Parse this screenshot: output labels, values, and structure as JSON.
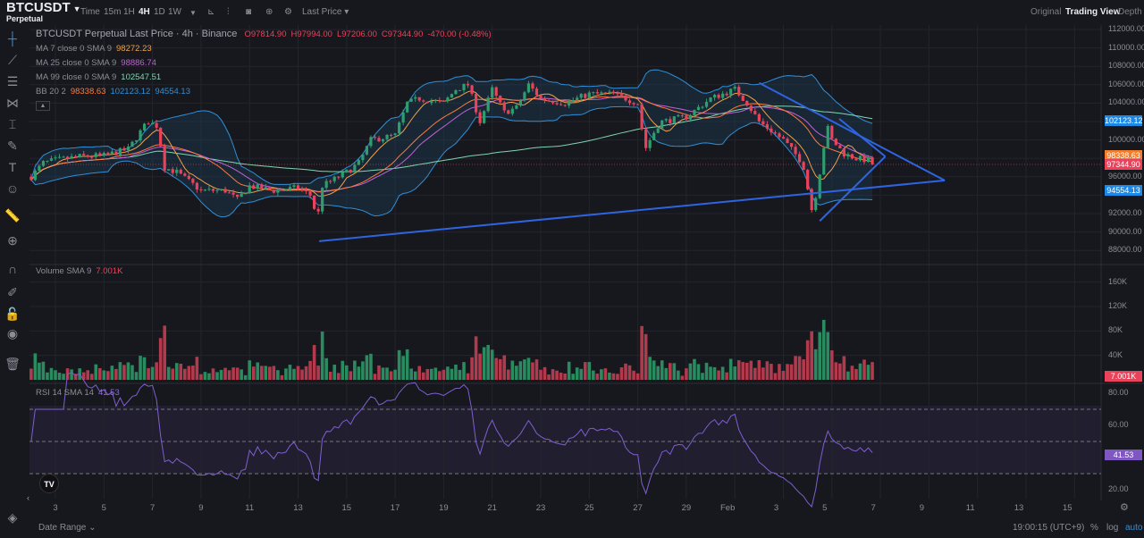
{
  "header": {
    "symbol": "BTCUSDT",
    "symbol_sub": "Perpetual",
    "intervals": [
      "Time",
      "15m",
      "1H",
      "4H",
      "1D",
      "1W"
    ],
    "active_interval": "4H",
    "price_source": "Last Price",
    "views": [
      "Original",
      "Trading View",
      "Depth"
    ],
    "active_view": "Trading View"
  },
  "legend": {
    "title": "BTCUSDT Perpetual Last Price · 4h · Binance",
    "ohlc": {
      "o": "O97814.90",
      "h": "H97994.00",
      "l": "L97206.00",
      "c": "C97344.90",
      "chg": "-470.00 (-0.48%)"
    },
    "ma7": {
      "label": "MA 7 close 0 SMA 9",
      "value": "98272.23",
      "color": "#f0a04b"
    },
    "ma25": {
      "label": "MA 25 close 0 SMA 9",
      "value": "98886.74",
      "color": "#c061d6"
    },
    "ma99": {
      "label": "MA 99 close 0 SMA 9",
      "value": "102547.51",
      "color": "#7fd6b0"
    },
    "bb": {
      "label": "BB 20 2",
      "basis": "98338.63",
      "upper": "102123.12",
      "lower": "94554.13",
      "basis_color": "#ff7a3d",
      "band_color": "#2f8fd8"
    },
    "volume": {
      "label": "Volume SMA 9",
      "value": "7.001K"
    },
    "rsi": {
      "label": "RSI 14 SMA 14",
      "value": "41.53"
    }
  },
  "price_axis": {
    "ticks": [
      "112000.00",
      "110000.00",
      "108000.00",
      "106000.00",
      "104000.00",
      "100000.00",
      "96000.00",
      "92000.00",
      "90000.00",
      "88000.00"
    ],
    "tags": [
      {
        "text": "102123.12",
        "price": 102123.12,
        "color": "#1e88e5"
      },
      {
        "text": "98338.63",
        "price": 98338.63,
        "color": "#f57c2a"
      },
      {
        "text": "97344.90",
        "price": 97344.9,
        "color": "#e8435a"
      },
      {
        "text": "94554.13",
        "price": 94554.13,
        "color": "#1e88e5"
      }
    ]
  },
  "volume_axis": {
    "ticks": [
      "160K",
      "120K",
      "80K",
      "40K"
    ],
    "tag": "7.001K"
  },
  "rsi_axis": {
    "ticks": [
      "80.00",
      "60.00",
      "20.00"
    ],
    "tag": "41.53"
  },
  "date_axis": {
    "labels": [
      "3",
      "5",
      "7",
      "9",
      "11",
      "13",
      "15",
      "17",
      "19",
      "21",
      "23",
      "25",
      "27",
      "29",
      "Feb",
      "3",
      "5",
      "7",
      "9",
      "11",
      "13",
      "15"
    ]
  },
  "bottom": {
    "date_range": "Date Range",
    "time": "19:00:15 (UTC+9)",
    "percent": "%",
    "log": "log",
    "auto": "auto"
  },
  "chart_data": {
    "type": "candlestick",
    "unit": "USDT",
    "interval": "4h",
    "close_path": [
      [
        "01-02",
        96000
      ],
      [
        "01-02.5",
        97500
      ],
      [
        "01-03",
        97800
      ],
      [
        "01-04",
        98200
      ],
      [
        "01-05",
        98300
      ],
      [
        "01-06",
        99000
      ],
      [
        "01-06.8",
        102000
      ],
      [
        "01-07.2",
        101500
      ],
      [
        "01-07.5",
        97000
      ],
      [
        "01-08",
        96500
      ],
      [
        "01-09",
        94500
      ],
      [
        "01-10",
        94500
      ],
      [
        "01-10.5",
        93500
      ],
      [
        "01-11",
        95000
      ],
      [
        "01-12",
        94500
      ],
      [
        "01-13",
        94800
      ],
      [
        "01-13.5",
        94000
      ],
      [
        "01-13.8",
        91500
      ],
      [
        "01-14",
        95000
      ],
      [
        "01-15",
        96500
      ],
      [
        "01-15.5",
        97500
      ],
      [
        "01-16",
        100000
      ],
      [
        "01-17",
        100500
      ],
      [
        "01-17.5",
        104000
      ],
      [
        "01-18",
        104500
      ],
      [
        "01-19",
        104000
      ],
      [
        "01-19.5",
        105500
      ],
      [
        "01-20",
        106000
      ],
      [
        "01-20.5",
        102000
      ],
      [
        "01-21",
        105500
      ],
      [
        "01-21.5",
        103000
      ],
      [
        "01-22",
        103500
      ],
      [
        "01-22.5",
        106000
      ],
      [
        "01-23",
        104500
      ],
      [
        "01-24",
        104000
      ],
      [
        "01-25",
        105000
      ],
      [
        "01-26",
        105000
      ],
      [
        "01-27",
        104000
      ],
      [
        "01-27.3",
        99000
      ],
      [
        "01-27.8",
        101500
      ],
      [
        "01-28",
        102000
      ],
      [
        "01-29",
        102500
      ],
      [
        "01-30",
        104500
      ],
      [
        "01-31",
        105500
      ],
      [
        "01-31.5",
        104000
      ],
      [
        "02-01",
        102000
      ],
      [
        "02-02",
        100000
      ],
      [
        "02-02.8",
        97500
      ],
      [
        "02-03.2",
        92000
      ],
      [
        "02-03.5",
        96500
      ],
      [
        "02-03.8",
        101500
      ],
      [
        "02-04",
        100000
      ],
      [
        "02-04.5",
        98500
      ],
      [
        "02-05",
        98000
      ],
      [
        "02-05.5",
        97800
      ],
      [
        "02-05.8",
        97344.9
      ]
    ],
    "trendlines": [
      [
        [
          "01-13.87",
          89000
        ],
        [
          "02-08.65",
          95600
        ]
      ],
      [
        [
          "02-01",
          106200
        ],
        [
          "02-08.65",
          95600
        ]
      ],
      [
        [
          "02-03.5",
          91200
        ],
        [
          "02-06.2",
          98200
        ]
      ],
      [
        [
          "02-04.3",
          102300
        ],
        [
          "02-06.2",
          98200
        ]
      ]
    ],
    "last_price": 97344.9,
    "rsi_levels": [
      70,
      50,
      30
    ]
  }
}
